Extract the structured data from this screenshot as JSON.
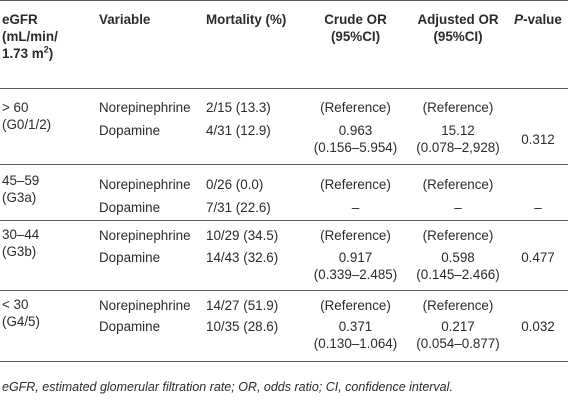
{
  "header": {
    "egfr": [
      "eGFR",
      "(mL/min/",
      "1.73 m"
    ],
    "egfr_sup": "2",
    "egfr_close": ")",
    "variable": "Variable",
    "mortality": "Mortality (%)",
    "crude_or": [
      "Crude OR",
      "(95%CI)"
    ],
    "adjusted_or": [
      "Adjusted OR",
      "(95%CI)"
    ],
    "p_italic": "P",
    "p_rest": "-value"
  },
  "groups": [
    {
      "egfr": [
        "> 60",
        "(G0/1/2)"
      ],
      "rows": [
        {
          "variable": "Norepinephrine",
          "mortality": "2/15 (13.3)",
          "crude": [
            "(Reference)"
          ],
          "adjusted": [
            "(Reference)"
          ],
          "p": ""
        },
        {
          "variable": "Dopamine",
          "mortality": "4/31 (12.9)",
          "crude": [
            "0.963",
            "(0.156–5.954)"
          ],
          "adjusted": [
            "15.12",
            "(0.078–2,928)"
          ],
          "p": "0.312"
        }
      ]
    },
    {
      "egfr": [
        "45–59",
        "(G3a)"
      ],
      "rows": [
        {
          "variable": "Norepinephrine",
          "mortality": "0/26 (0.0)",
          "crude": [
            "(Reference)"
          ],
          "adjusted": [
            "(Reference)"
          ],
          "p": ""
        },
        {
          "variable": "Dopamine",
          "mortality": "7/31 (22.6)",
          "crude": [
            "–"
          ],
          "adjusted": [
            "–"
          ],
          "p": "–"
        }
      ]
    },
    {
      "egfr": [
        "30–44",
        "(G3b)"
      ],
      "rows": [
        {
          "variable": "Norepinephrine",
          "mortality": "10/29 (34.5)",
          "crude": [
            "(Reference)"
          ],
          "adjusted": [
            "(Reference)"
          ],
          "p": ""
        },
        {
          "variable": "Dopamine",
          "mortality": "14/43 (32.6)",
          "crude": [
            "0.917",
            "(0.339–2.485)"
          ],
          "adjusted": [
            "0.598",
            "(0.145–2.466)"
          ],
          "p": "0.477"
        }
      ]
    },
    {
      "egfr": [
        "< 30",
        "(G4/5)"
      ],
      "rows": [
        {
          "variable": "Norepinephrine",
          "mortality": "14/27 (51.9)",
          "crude": [
            "(Reference)"
          ],
          "adjusted": [
            "(Reference)"
          ],
          "p": ""
        },
        {
          "variable": "Dopamine",
          "mortality": "10/35 (28.6)",
          "crude": [
            "0.371",
            "(0.130–1.064)"
          ],
          "adjusted": [
            "0.217",
            "(0.054–0.877)"
          ],
          "p": "0.032"
        }
      ]
    }
  ],
  "footnote": "eGFR, estimated glomerular filtration rate; OR, odds ratio; CI, confidence interval.",
  "colors": {
    "text": "#2b2b2b",
    "rule": "#5a5a5a",
    "background": "#ffffff"
  }
}
